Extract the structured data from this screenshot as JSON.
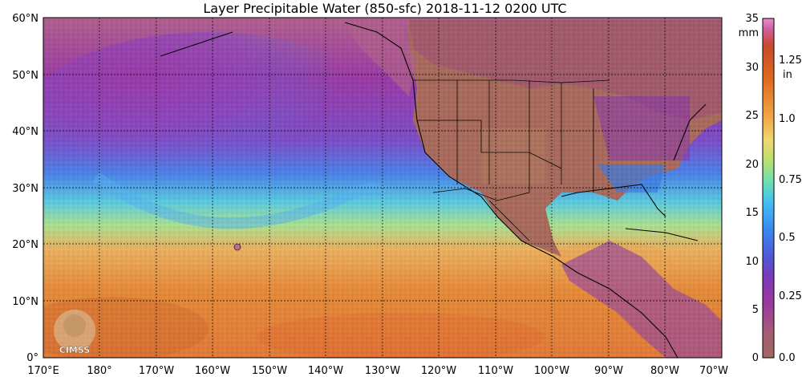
{
  "title": "Layer Precipitable Water (850-sfc)  2018-11-12 0200 UTC",
  "map": {
    "lat_labels": [
      "60°N",
      "50°N",
      "40°N",
      "30°N",
      "20°N",
      "10°N",
      "0°"
    ],
    "lon_labels": [
      "170°E",
      "180°",
      "170°W",
      "160°W",
      "150°W",
      "140°W",
      "130°W",
      "120°W",
      "110°W",
      "100°W",
      "90°W",
      "80°W",
      "70°W"
    ],
    "extent": {
      "west": "170°E",
      "east": "70°W",
      "south": "0°",
      "north": "60°N"
    },
    "grid": true,
    "logo_text": "CIMSS"
  },
  "colorbar": {
    "mm_unit": "mm",
    "in_unit": "in",
    "mm_ticks": [
      "35",
      "30",
      "25",
      "20",
      "15",
      "10",
      "5",
      "0"
    ],
    "in_ticks": [
      "1.25",
      "1.0",
      "0.75",
      "0.5",
      "0.25",
      "0.0"
    ],
    "colors": [
      "#a06a60",
      "#9a3a8c",
      "#7a3ab0",
      "#4e5ad6",
      "#3aa0f0",
      "#6ee0b0",
      "#e8d870",
      "#e8a040",
      "#e06a20",
      "#c84a2a",
      "#e07ac0"
    ]
  }
}
